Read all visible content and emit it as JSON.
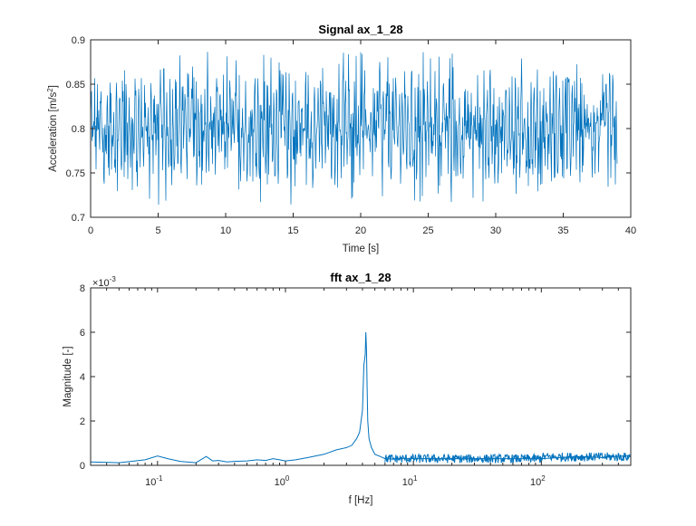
{
  "colors": {
    "series": "#0072BD",
    "axes": "#262626"
  },
  "chart_data": [
    {
      "type": "line",
      "title": "Signal ax_1_28",
      "xlabel": "Time [s]",
      "ylabel": "Acceleration [m/s^2]",
      "ylabel_main": "Acceleration [m/s",
      "ylabel_sup": "2",
      "ylabel_end": "]",
      "xlim": [
        0,
        40
      ],
      "ylim": [
        0.7,
        0.9
      ],
      "xticks": [
        0,
        5,
        10,
        15,
        20,
        25,
        30,
        35,
        40
      ],
      "xtick_labels": [
        "0",
        "5",
        "10",
        "15",
        "20",
        "25",
        "30",
        "35",
        "40"
      ],
      "yticks": [
        0.7,
        0.75,
        0.8,
        0.85,
        0.9
      ],
      "ytick_labels": [
        "0.7",
        "0.75",
        "0.8",
        "0.85",
        "0.9"
      ],
      "grid": false,
      "series": [
        {
          "signal_summary": {
            "t_start": 0,
            "t_end": 39,
            "mean": 0.8,
            "typical_min": 0.75,
            "typical_max": 0.855,
            "extreme_min": 0.713,
            "extreme_max": 0.889,
            "dominant_frequency_hz": 4.3
          }
        }
      ]
    },
    {
      "type": "line",
      "title": "fft ax_1_28",
      "xlabel": "f [Hz]",
      "ylabel": "Magnitude [-]",
      "xscale": "log",
      "xlim": [
        0.03,
        500
      ],
      "ylim": [
        0,
        8
      ],
      "y_exponent_label": "×10",
      "y_exponent": "-3",
      "xticks": [
        0.1,
        1,
        10,
        100
      ],
      "xtick_bases": [
        "10",
        "10",
        "10",
        "10"
      ],
      "xtick_exponents": [
        "-1",
        "0",
        "1",
        "2"
      ],
      "yticks": [
        0,
        2,
        4,
        6,
        8
      ],
      "ytick_labels": [
        "0",
        "2",
        "4",
        "6",
        "8"
      ],
      "grid": false,
      "series": [
        {
          "x": [
            0.03,
            0.05,
            0.08,
            0.1,
            0.12,
            0.15,
            0.2,
            0.24,
            0.27,
            0.3,
            0.35,
            0.4,
            0.5,
            0.6,
            0.7,
            0.8,
            0.9,
            1.0,
            1.2,
            1.5,
            2.0,
            2.5,
            3.0,
            3.3,
            3.6,
            3.8,
            4.0,
            4.1,
            4.2,
            4.25,
            4.3,
            4.35,
            4.4,
            4.5,
            4.7,
            5.0,
            5.5,
            6.0,
            7.0,
            8.0,
            10,
            20,
            50,
            100,
            200,
            300,
            500
          ],
          "y": [
            0.15,
            0.12,
            0.25,
            0.42,
            0.3,
            0.18,
            0.12,
            0.4,
            0.2,
            0.22,
            0.15,
            0.18,
            0.2,
            0.25,
            0.22,
            0.3,
            0.25,
            0.2,
            0.25,
            0.35,
            0.5,
            0.7,
            0.8,
            0.9,
            1.2,
            1.5,
            2.5,
            4.5,
            5.0,
            6.0,
            5.2,
            3.5,
            2.0,
            1.2,
            0.8,
            0.5,
            0.4,
            0.3,
            0.28,
            0.3,
            0.3,
            0.3,
            0.3,
            0.3,
            0.4,
            0.35,
            0.45
          ],
          "noise_amplitude_high_freq": 0.25
        }
      ]
    }
  ]
}
